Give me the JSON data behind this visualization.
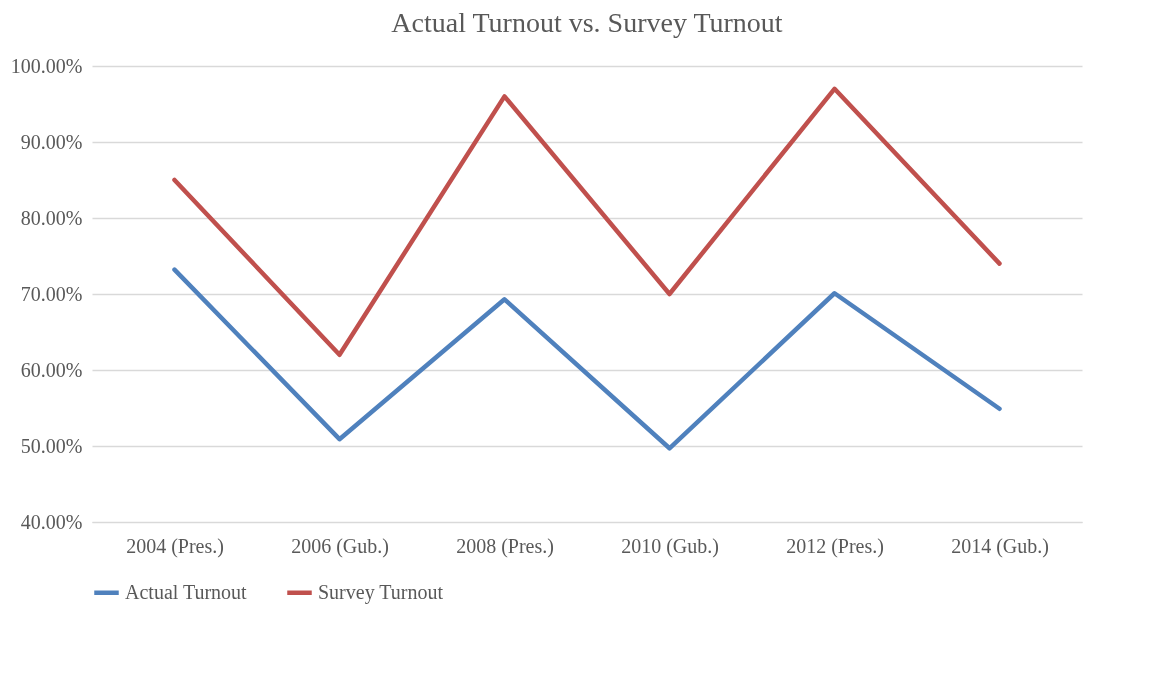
{
  "chart_data": {
    "type": "line",
    "title": "Actual Turnout vs. Survey Turnout",
    "categories": [
      "2004 (Pres.)",
      "2006 (Gub.)",
      "2008 (Pres.)",
      "2010 (Gub.)",
      "2012 (Pres.)",
      "2014 (Gub.)"
    ],
    "series": [
      {
        "name": "Actual Turnout",
        "color": "#4f81bd",
        "values": [
          73.2,
          50.9,
          69.3,
          49.7,
          70.1,
          54.9
        ]
      },
      {
        "name": "Survey Turnout",
        "color": "#c0504d",
        "values": [
          85,
          62,
          96,
          70,
          97,
          74
        ]
      }
    ],
    "ylim": [
      40,
      100
    ],
    "yticks": [
      {
        "value": 40,
        "label": "40.00%"
      },
      {
        "value": 50,
        "label": "50.00%"
      },
      {
        "value": 60,
        "label": "60.00%"
      },
      {
        "value": 70,
        "label": "70.00%"
      },
      {
        "value": 80,
        "label": "80.00%"
      },
      {
        "value": 90,
        "label": "90.00%"
      },
      {
        "value": 100,
        "label": "100.00%"
      }
    ],
    "grid": "y",
    "legend": "bottom",
    "marker": "none",
    "line_style": "solid"
  }
}
